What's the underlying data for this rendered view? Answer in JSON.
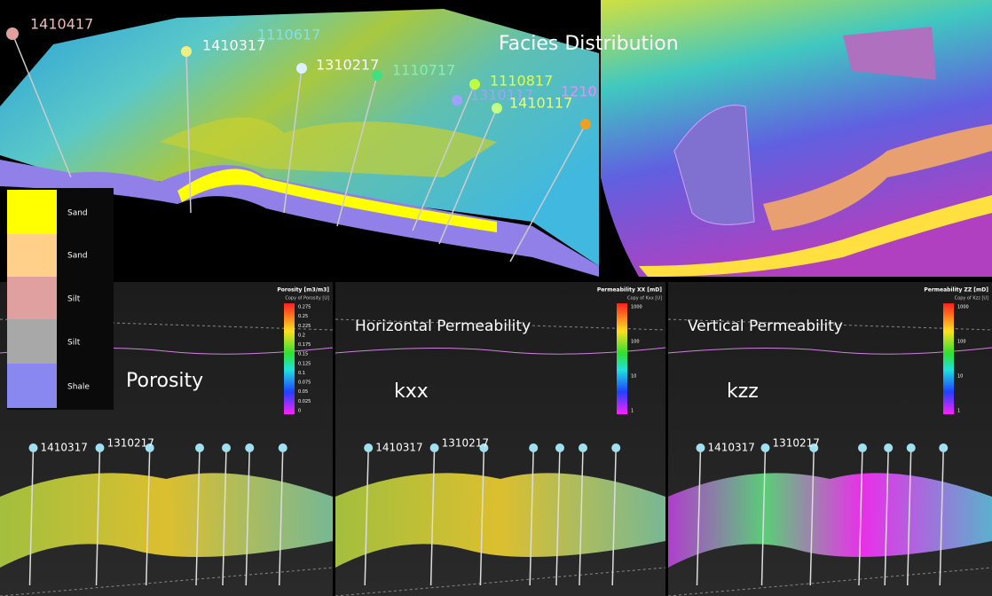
{
  "facies_view": {
    "title": "Facies Distribution",
    "wells": [
      "1410417",
      "1410317",
      "1110617",
      "1310217",
      "1110717",
      "1110817",
      "1310117",
      "1210",
      "1410117"
    ]
  },
  "facies_legend": [
    "Sand",
    "Sand",
    "Silt",
    "Silt",
    "Shale"
  ],
  "panels": [
    {
      "title": "Porosity",
      "colorbar_title": "Porosity [m3/m3]",
      "colorbar_subtitle": "Copy of Porosity [U]",
      "ticks": [
        "0.275",
        "0.25",
        "0.225",
        "0.2",
        "0.175",
        "0.15",
        "0.125",
        "0.1",
        "0.075",
        "0.05",
        "0.025",
        "0"
      ],
      "wells": [
        "1410317",
        "1310217"
      ]
    },
    {
      "title": "Horizontal Permeability",
      "subtitle": "kxx",
      "colorbar_title": "Permeability XX [mD]",
      "colorbar_subtitle": "Copy of Kxx [U]",
      "ticks": [
        "1000",
        "100",
        "10",
        "1"
      ],
      "wells": [
        "1410317",
        "1310217"
      ]
    },
    {
      "title": "Vertical Permeability",
      "subtitle": "kzz",
      "colorbar_title": "Permeability ZZ [mD]",
      "colorbar_subtitle": "Copy of Kzz [U]",
      "ticks": [
        "1000",
        "100",
        "10",
        "1"
      ],
      "wells": [
        "1410317",
        "1310217"
      ]
    }
  ]
}
